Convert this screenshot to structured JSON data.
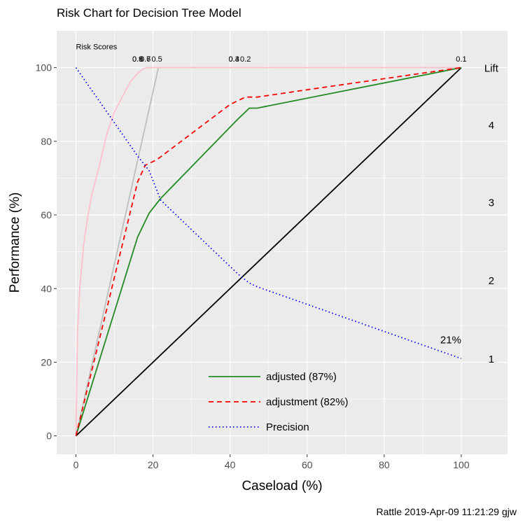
{
  "chart_data": {
    "type": "line",
    "title": "Risk Chart for Decision Tree Model",
    "xlabel": "Caseload (%)",
    "ylabel": "Performance (%)",
    "caption": "Rattle 2019-Apr-09 11:21:29 gjw",
    "xlim": [
      -5,
      112
    ],
    "ylim": [
      -5,
      110
    ],
    "x_ticks": [
      0,
      20,
      40,
      60,
      80,
      100
    ],
    "y_ticks": [
      0,
      20,
      40,
      60,
      80,
      100
    ],
    "grid": true,
    "legend_position": "bottom-center",
    "series": [
      {
        "name": "adjusted (87%)",
        "style": "solid",
        "color": "#228B22",
        "x": [
          0,
          16,
          19,
          22,
          42,
          45,
          47,
          100
        ],
        "y": [
          0,
          54,
          60.5,
          64.5,
          86,
          89,
          89,
          100
        ]
      },
      {
        "name": "adjustment (82%)",
        "style": "dashed",
        "color": "#ff0000",
        "x": [
          0,
          16,
          18,
          21,
          40,
          44,
          47,
          60,
          80,
          100
        ],
        "y": [
          0,
          69,
          73.5,
          75,
          90,
          92,
          92,
          94,
          97,
          100
        ]
      },
      {
        "name": "Precision",
        "style": "dotted",
        "color": "#0000ff",
        "x": [
          0,
          16,
          19,
          22,
          42,
          45,
          47,
          100
        ],
        "y": [
          100,
          76,
          72,
          64,
          44,
          41.5,
          40.5,
          21
        ]
      }
    ],
    "reference_lines": [
      {
        "role": "baseline",
        "color": "#000000",
        "x": [
          0,
          100
        ],
        "y": [
          0,
          100
        ]
      },
      {
        "role": "optimal",
        "color": "#bebebe",
        "x": [
          0,
          21.4
        ],
        "y": [
          0,
          100
        ]
      },
      {
        "role": "optimal-curve",
        "color": "#ffc0cb",
        "x": [
          0,
          0.4,
          1,
          2,
          3,
          4,
          5,
          6,
          8,
          10,
          12,
          14,
          16,
          17.5,
          18.5,
          20,
          40,
          100
        ],
        "y": [
          0,
          28,
          40,
          52,
          59,
          65,
          69,
          73,
          82,
          88,
          92,
          96,
          98.5,
          99.7,
          100,
          100,
          100,
          100
        ]
      }
    ],
    "risk_scores_label": "Risk Scores",
    "risk_scores": [
      {
        "label": "0.9",
        "x": 16.0
      },
      {
        "label": "0.8",
        "x": 16.0
      },
      {
        "label": "0.7",
        "x": 18.0
      },
      {
        "label": "0.6",
        "x": 18.0
      },
      {
        "label": "0.5",
        "x": 21.0
      },
      {
        "label": "0.4",
        "x": 41.0
      },
      {
        "label": "0.3",
        "x": 41.0
      },
      {
        "label": "0.2",
        "x": 44.0
      },
      {
        "label": "0.1",
        "x": 100.0
      }
    ],
    "lift_title": "Lift",
    "lift_labels": [
      {
        "label": "4",
        "y": 84.5
      },
      {
        "label": "3",
        "y": 63.5
      },
      {
        "label": "2",
        "y": 42.3
      },
      {
        "label": "1",
        "y": 21.0
      }
    ],
    "precision_end_label": "21%"
  }
}
